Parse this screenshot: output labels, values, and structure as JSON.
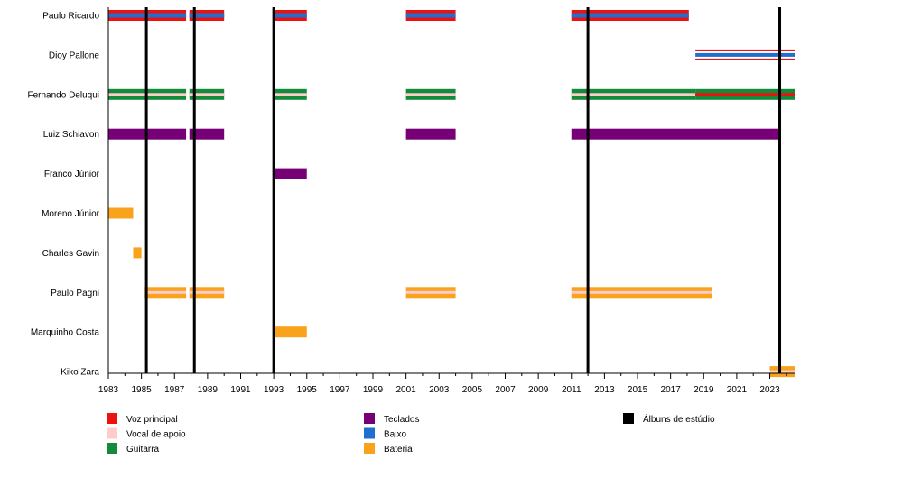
{
  "chart_data": {
    "type": "timeline",
    "x_range": [
      1983,
      2024.5
    ],
    "tick_years": [
      1983,
      1985,
      1987,
      1989,
      1991,
      1993,
      1995,
      1997,
      1999,
      2001,
      2003,
      2005,
      2007,
      2009,
      2011,
      2013,
      2015,
      2017,
      2019,
      2021,
      2023
    ],
    "colors": {
      "vocal": "#ee1111",
      "backing": "#ffcccc",
      "guitar": "#138b3a",
      "keys": "#770077",
      "bass": "#1f6fcf",
      "drums": "#f9a21b",
      "album": "#000000"
    },
    "members": [
      {
        "name": "Paulo Ricardo",
        "roles": [
          "vocal",
          "bass"
        ],
        "periods": [
          [
            1983,
            1987.7
          ],
          [
            1987.9,
            1990
          ],
          [
            1993,
            1995
          ],
          [
            2001,
            2004
          ],
          [
            2011,
            2018.1
          ]
        ]
      },
      {
        "name": "Dioy Pallone",
        "roles": [
          "bass",
          "vocal"
        ],
        "periods": [
          [
            2018.5,
            2024.5
          ]
        ]
      },
      {
        "name": "Fernando Deluqui",
        "roles": [
          "guitar",
          "backing"
        ],
        "periods": [
          [
            1983,
            1987.7
          ],
          [
            1987.9,
            1990
          ],
          [
            1993,
            1995
          ],
          [
            2001,
            2004
          ],
          [
            2011,
            2018.5
          ]
        ]
      },
      {
        "name": "Fernando Deluqui",
        "roles": [
          "guitar",
          "vocal"
        ],
        "periods": [
          [
            2018.5,
            2024.5
          ]
        ]
      },
      {
        "name": "Luiz Schiavon",
        "roles": [
          "keys"
        ],
        "periods": [
          [
            1983,
            1987.7
          ],
          [
            1987.9,
            1990
          ],
          [
            2001,
            2004
          ],
          [
            2011,
            2023.6
          ]
        ]
      },
      {
        "name": "Franco Júnior",
        "roles": [
          "keys"
        ],
        "periods": [
          [
            1993,
            1995
          ]
        ]
      },
      {
        "name": "Moreno Júnior",
        "roles": [
          "drums"
        ],
        "periods": [
          [
            1983,
            1984.5
          ]
        ]
      },
      {
        "name": "Charles Gavin",
        "roles": [
          "drums"
        ],
        "periods": [
          [
            1984.5,
            1985
          ]
        ]
      },
      {
        "name": "Paulo Pagni",
        "roles": [
          "drums",
          "backing"
        ],
        "periods": [
          [
            1985.2,
            1987.7
          ],
          [
            1987.9,
            1990
          ],
          [
            2001,
            2004
          ],
          [
            2011,
            2019.5
          ]
        ]
      },
      {
        "name": "Marquinho Costa",
        "roles": [
          "drums"
        ],
        "periods": [
          [
            1993,
            1995
          ]
        ]
      },
      {
        "name": "Kiko Zara",
        "roles": [
          "drums",
          "backing"
        ],
        "periods": [
          [
            2023,
            2024.5
          ]
        ]
      }
    ],
    "rows": [
      "Paulo Ricardo",
      "Dioy Pallone",
      "Fernando Deluqui",
      "Luiz Schiavon",
      "Franco Júnior",
      "Moreno Júnior",
      "Charles Gavin",
      "Paulo Pagni",
      "Marquinho Costa",
      "Kiko Zara"
    ],
    "albums": [
      1985.3,
      1988.2,
      1993,
      2012,
      2023.6
    ],
    "legend": [
      {
        "role": "vocal",
        "label": "Voz principal"
      },
      {
        "role": "backing",
        "label": "Vocal de apoio"
      },
      {
        "role": "guitar",
        "label": "Guitarra"
      },
      {
        "role": "keys",
        "label": "Teclados"
      },
      {
        "role": "bass",
        "label": "Baixo"
      },
      {
        "role": "drums",
        "label": "Bateria"
      },
      {
        "role": "album",
        "label": "Álbuns de estúdio"
      }
    ]
  }
}
